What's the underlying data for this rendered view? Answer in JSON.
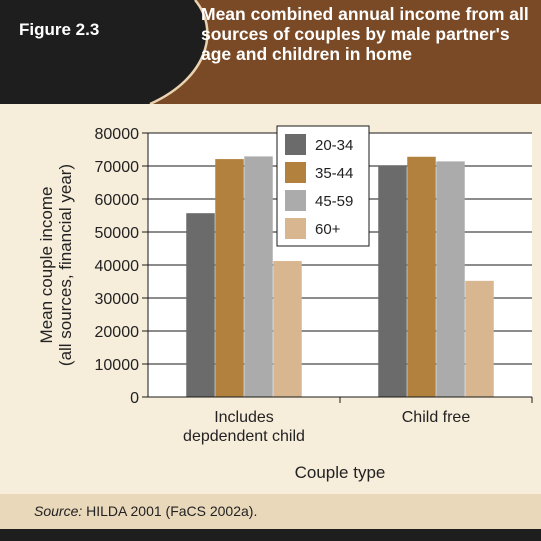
{
  "figure_label": "Figure 2.3",
  "title": "Mean combined annual income from all sources of couples by male partner's age and children in home",
  "source": {
    "label": "Source:",
    "text": " HILDA 2001 (FaCS 2002a)."
  },
  "colors": {
    "header_black": "#1e1e1e",
    "header_brown": "#7a4a26",
    "panel": "#f7eddb",
    "source_bar": "#ead8bb"
  },
  "chart_data": {
    "type": "bar",
    "categories": [
      "Includes\ndepdendent child",
      "Child free"
    ],
    "series": [
      {
        "name": "20-34",
        "color": "#6b6b6b",
        "values": [
          55700,
          70000
        ]
      },
      {
        "name": "35-44",
        "color": "#b3813e",
        "values": [
          72100,
          72800
        ]
      },
      {
        "name": "45-59",
        "color": "#ababab",
        "values": [
          72900,
          71400
        ]
      },
      {
        "name": "60+",
        "color": "#d8b68f",
        "values": [
          41200,
          35200
        ]
      }
    ],
    "ylim": [
      0,
      80000
    ],
    "yticks": [
      0,
      10000,
      20000,
      30000,
      40000,
      50000,
      60000,
      70000,
      80000
    ],
    "ylabel_lines": [
      "Mean couple income",
      "(all sources, financial year)"
    ],
    "xlabel": "Couple type",
    "grid": true,
    "legend_position": "top-center"
  }
}
